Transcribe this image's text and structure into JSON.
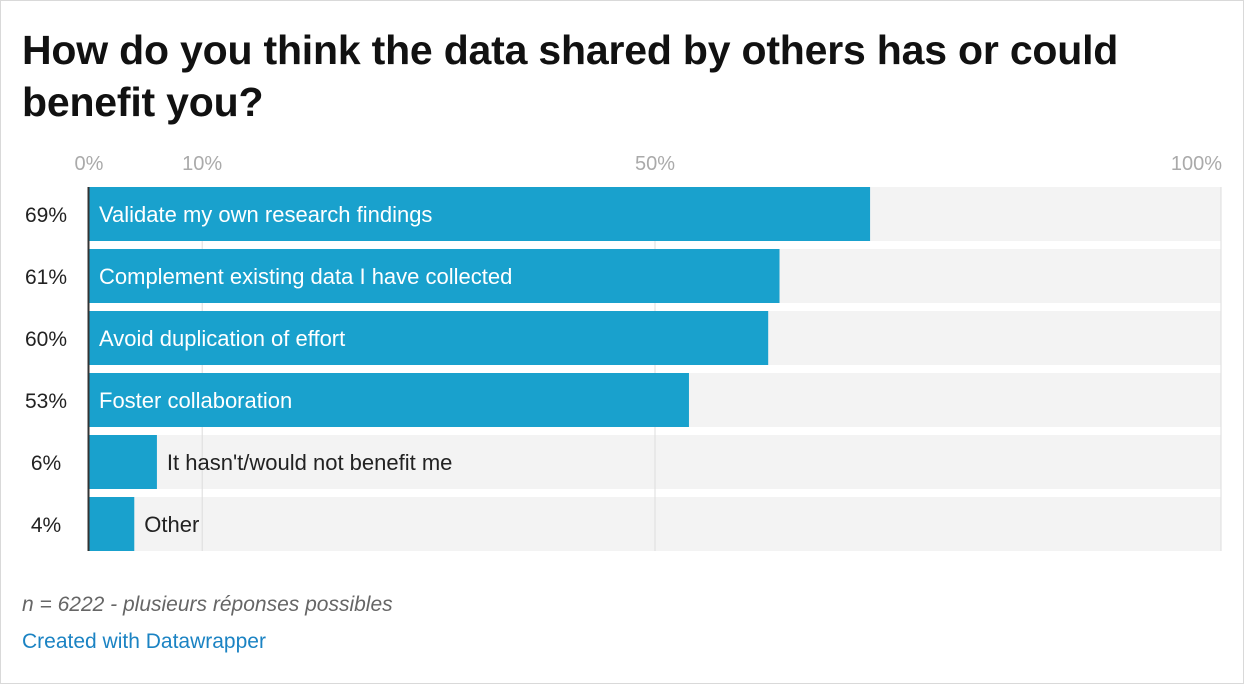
{
  "chart_data": {
    "type": "bar",
    "orientation": "horizontal",
    "title": "How do you think the data shared by others has or could benefit you?",
    "categories": [
      "Validate my own research findings",
      "Complement existing data I have collected",
      "Avoid duplication of effort",
      "Foster collaboration",
      "It hasn't/would not benefit me",
      "Other"
    ],
    "values": [
      69,
      61,
      60,
      53,
      6,
      4
    ],
    "value_labels": [
      "69%",
      "61%",
      "60%",
      "53%",
      "6%",
      "4%"
    ],
    "xlim": [
      0,
      100
    ],
    "x_ticks": [
      {
        "value": 0,
        "label": "0%"
      },
      {
        "value": 10,
        "label": "10%"
      },
      {
        "value": 50,
        "label": "50%"
      },
      {
        "value": 100,
        "label": "100%"
      }
    ],
    "grid": true,
    "legend": "none",
    "bar_color": "#19a1cd",
    "track_color": "#f3f3f3"
  },
  "footnote": "n = 6222 - plusieurs réponses possibles",
  "credit": "Created with Datawrapper"
}
